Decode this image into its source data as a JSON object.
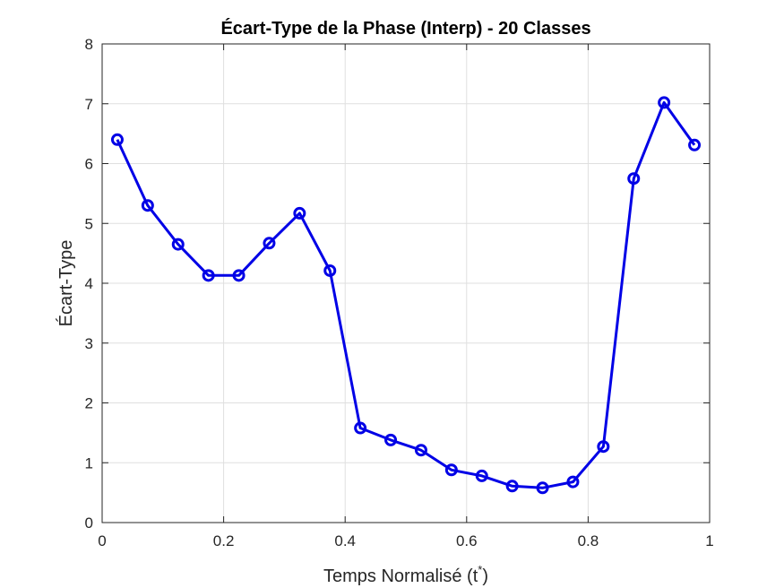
{
  "chart_data": {
    "type": "line",
    "title": "Écart-Type de la Phase (Interp) - 20 Classes",
    "xlabel": "Temps Normalisé (t",
    "xlabel_superscript": "*",
    "xlabel_suffix": ")",
    "ylabel": "Écart-Type",
    "xlim": [
      0,
      1
    ],
    "ylim": [
      0,
      8
    ],
    "xticks": [
      0,
      0.2,
      0.4,
      0.6,
      0.8,
      1
    ],
    "xtick_labels": [
      "0",
      "0.2",
      "0.4",
      "0.6",
      "0.8",
      "1"
    ],
    "yticks": [
      0,
      1,
      2,
      3,
      4,
      5,
      6,
      7,
      8
    ],
    "ytick_labels": [
      "0",
      "1",
      "2",
      "3",
      "4",
      "5",
      "6",
      "7",
      "8"
    ],
    "grid": true,
    "series": [
      {
        "color": "#0000e6",
        "marker": "circle",
        "x": [
          0.025,
          0.075,
          0.125,
          0.175,
          0.225,
          0.275,
          0.325,
          0.375,
          0.425,
          0.475,
          0.525,
          0.575,
          0.625,
          0.675,
          0.725,
          0.775,
          0.825,
          0.875,
          0.925,
          0.975
        ],
        "y": [
          6.4,
          5.3,
          4.65,
          4.13,
          4.13,
          4.67,
          5.17,
          4.21,
          1.58,
          1.38,
          1.21,
          0.88,
          0.78,
          0.61,
          0.58,
          0.68,
          1.27,
          5.75,
          7.02,
          6.31
        ]
      }
    ]
  }
}
